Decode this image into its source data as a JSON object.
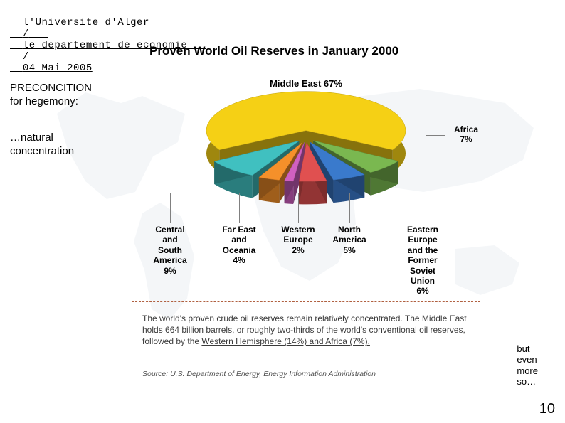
{
  "header": {
    "left": "l'Universite d'Alger",
    "sep": "/",
    "mid": "le departement de economie",
    "right": "04 Mai 2005"
  },
  "sidebar": {
    "precondition_line1": "PRECONCITION",
    "precondition_line2": "for hegemony:",
    "natural_line1": "…natural",
    "natural_line2": "concentration"
  },
  "right_note": {
    "l1": "but",
    "l2": "even",
    "l3": "more",
    "l4": "so…"
  },
  "page_number": "10",
  "chart": {
    "title": "Proven World Oil Reserves in January 2000",
    "type": "exploded-3d-pie",
    "border_color": "#b06040",
    "slices": [
      {
        "name": "Middle East",
        "pct": 67,
        "color": "#f5d015"
      },
      {
        "name": "Africa",
        "pct": 7,
        "color": "#7ab850"
      },
      {
        "name": "Eastern Europe and the Former Soviet Union",
        "pct": 6,
        "color": "#3a7acc"
      },
      {
        "name": "North America",
        "pct": 5,
        "color": "#e05050"
      },
      {
        "name": "Western Europe",
        "pct": 2,
        "color": "#d060c0"
      },
      {
        "name": "Far East and Oceania",
        "pct": 4,
        "color": "#f5902a"
      },
      {
        "name": "Central and South America",
        "pct": 9,
        "color": "#40c0c0"
      }
    ],
    "label_me": "Middle East 67%",
    "label_africa_l1": "Africa",
    "label_africa_l2": "7%",
    "label_csa": "Central and South America 9%",
    "label_fea": "Far East and Oceania 4%",
    "label_weu": "Western Europe 2%",
    "label_nam": "North America 5%",
    "label_eeu": "Eastern Europe and the Former Soviet Union 6%",
    "label_fontsize": 12,
    "title_fontsize": 17
  },
  "caption": {
    "text_a": "The world's proven crude oil reserves remain relatively concentrated. The Middle East holds 664 billion barrels, or roughly two-thirds of the world's conventional oil reserves, followed by the ",
    "text_underlined": "Western Hemisphere (14%) and Africa (7%).",
    "source": "Source: U.S. Department of Energy, Energy Information Administration"
  },
  "colors": {
    "map_fill": "#c4d2de",
    "text": "#000000",
    "caption_text": "#3a3a3a",
    "leader": "#808080"
  }
}
